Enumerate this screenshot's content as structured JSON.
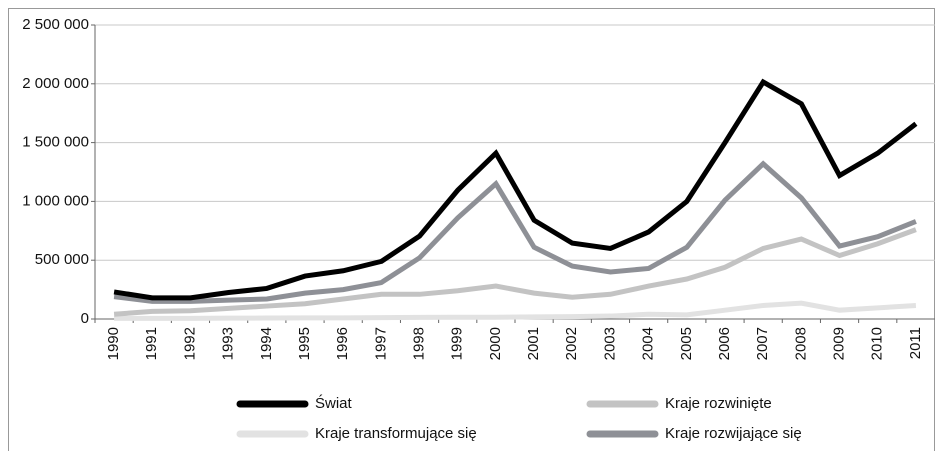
{
  "chart_data": {
    "type": "line",
    "categories": [
      "1990",
      "1991",
      "1992",
      "1993",
      "1994",
      "1995",
      "1996",
      "1997",
      "1998",
      "1999",
      "2000",
      "2001",
      "2002",
      "2003",
      "2004",
      "2005",
      "2006",
      "2007",
      "2008",
      "2009",
      "2010",
      "2011"
    ],
    "series": [
      {
        "name": "Kraje transformujące się",
        "color": "#e2e2e2",
        "values": [
          5000,
          5000,
          5000,
          7000,
          8000,
          10000,
          10000,
          12000,
          14000,
          15000,
          15000,
          18000,
          20000,
          25000,
          40000,
          35000,
          75000,
          115000,
          135000,
          75000,
          95000,
          115000
        ]
      },
      {
        "name": "Kraje rozwinięte",
        "color": "#c3c3c3",
        "values": [
          40000,
          65000,
          70000,
          90000,
          110000,
          130000,
          170000,
          210000,
          210000,
          240000,
          280000,
          220000,
          185000,
          210000,
          280000,
          340000,
          440000,
          600000,
          680000,
          540000,
          640000,
          760000
        ]
      },
      {
        "name": "Kraje rozwijające się",
        "color": "#8e9096",
        "values": [
          190000,
          150000,
          150000,
          160000,
          170000,
          220000,
          250000,
          310000,
          520000,
          860000,
          1150000,
          610000,
          450000,
          400000,
          430000,
          610000,
          1010000,
          1320000,
          1030000,
          620000,
          700000,
          830000
        ]
      },
      {
        "name": "Świat",
        "color": "#000000",
        "values": [
          230000,
          180000,
          180000,
          225000,
          260000,
          365000,
          410000,
          490000,
          705000,
          1095000,
          1410000,
          840000,
          645000,
          600000,
          740000,
          1000000,
          1500000,
          2015000,
          1830000,
          1220000,
          1410000,
          1660000
        ]
      }
    ],
    "legend_order": [
      3,
      1,
      0,
      2
    ],
    "ylim": [
      0,
      2500000
    ],
    "yticks": [
      0,
      {
        "value": 500000,
        "label": "500 000"
      },
      {
        "value": 1000000,
        "label": "1 000 000"
      },
      {
        "value": 1500000,
        "label": "1 500 000"
      },
      {
        "value": 2000000,
        "label": "2 000 000"
      },
      {
        "value": 2500000,
        "label": "2 500 000"
      }
    ],
    "grid": true
  }
}
